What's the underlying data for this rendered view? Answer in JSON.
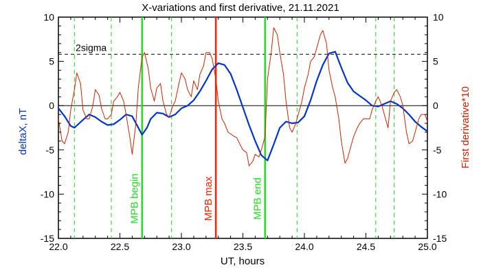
{
  "chart_data": {
    "type": "line",
    "title": "X-variations and first derivative, 21.11.2021",
    "xlabel": "UT, hours",
    "ylabel_left": "deltaX, nT",
    "ylabel_right": "First derivative*10",
    "xlim": [
      22.0,
      25.0
    ],
    "ylim": [
      -15,
      10
    ],
    "x_ticks": [
      "22.0",
      "22.5",
      "23.0",
      "23.5",
      "24.0",
      "24.5",
      "25.0"
    ],
    "y_ticks_left": [
      "-15",
      "-10",
      "-5",
      "0",
      "5",
      "10"
    ],
    "y_ticks_right": [
      "-15",
      "-10",
      "-5",
      "0",
      "5",
      "10"
    ],
    "sigma": {
      "label": "2sigma",
      "value": 5.8
    },
    "colors": {
      "deltaX": "#0033cc",
      "derivative": "#cc2200",
      "mpb": "#22dd22",
      "mpb_max": "#ff2200",
      "dashed_green": "#22cc22"
    },
    "series": [
      {
        "key": "deltaX",
        "color": "#0033cc",
        "x": [
          22.0,
          22.05,
          22.1,
          22.13,
          22.2,
          22.25,
          22.3,
          22.35,
          22.4,
          22.45,
          22.5,
          22.55,
          22.6,
          22.65,
          22.68,
          22.72,
          22.75,
          22.8,
          22.85,
          22.9,
          22.95,
          23.0,
          23.05,
          23.1,
          23.15,
          23.2,
          23.25,
          23.3,
          23.35,
          23.4,
          23.45,
          23.5,
          23.55,
          23.6,
          23.65,
          23.7,
          23.75,
          23.8,
          23.85,
          23.9,
          23.95,
          24.0,
          24.05,
          24.1,
          24.15,
          24.2,
          24.25,
          24.3,
          24.35,
          24.4,
          24.45,
          24.5,
          24.55,
          24.6,
          24.65,
          24.7,
          24.75,
          24.8,
          24.85,
          24.9,
          24.95,
          25.0
        ],
        "y": [
          -0.3,
          -1.2,
          -2.3,
          -2.5,
          -1.6,
          -1.0,
          -1.3,
          -1.8,
          -2.2,
          -2.1,
          -1.6,
          -1.0,
          -1.2,
          -2.5,
          -3.3,
          -2.5,
          -1.5,
          -0.8,
          -0.9,
          -1.3,
          -1.0,
          -0.3,
          0.0,
          0.6,
          1.6,
          2.8,
          4.1,
          4.8,
          4.6,
          3.6,
          1.8,
          -0.2,
          -2.2,
          -4.0,
          -5.6,
          -6.2,
          -4.4,
          -2.5,
          -1.8,
          -2.0,
          -1.9,
          -1.2,
          0.6,
          2.8,
          4.6,
          5.9,
          6.1,
          4.3,
          2.6,
          1.6,
          1.1,
          0.6,
          0.0,
          -0.1,
          0.2,
          0.5,
          0.2,
          -0.3,
          -1.0,
          -1.8,
          -2.4,
          -2.9
        ]
      },
      {
        "key": "derivative",
        "color": "#cc2200",
        "x": [
          22.0,
          22.03,
          22.05,
          22.08,
          22.1,
          22.13,
          22.15,
          22.18,
          22.2,
          22.23,
          22.25,
          22.28,
          22.3,
          22.33,
          22.35,
          22.38,
          22.4,
          22.43,
          22.45,
          22.48,
          22.5,
          22.53,
          22.55,
          22.58,
          22.6,
          22.63,
          22.65,
          22.68,
          22.7,
          22.73,
          22.75,
          22.78,
          22.8,
          22.83,
          22.85,
          22.88,
          22.9,
          22.93,
          22.95,
          22.98,
          23.0,
          23.03,
          23.05,
          23.08,
          23.1,
          23.13,
          23.15,
          23.18,
          23.2,
          23.23,
          23.25,
          23.28,
          23.3,
          23.33,
          23.35,
          23.38,
          23.4,
          23.43,
          23.45,
          23.48,
          23.5,
          23.53,
          23.55,
          23.58,
          23.6,
          23.63,
          23.65,
          23.68,
          23.7,
          23.73,
          23.75,
          23.78,
          23.8,
          23.83,
          23.85,
          23.88,
          23.9,
          23.93,
          23.95,
          23.98,
          24.0,
          24.03,
          24.05,
          24.08,
          24.1,
          24.13,
          24.15,
          24.18,
          24.2,
          24.23,
          24.25,
          24.28,
          24.3,
          24.33,
          24.35,
          24.38,
          24.4,
          24.43,
          24.45,
          24.48,
          24.5,
          24.53,
          24.55,
          24.58,
          24.6,
          24.63,
          24.65,
          24.68,
          24.7,
          24.73,
          24.75,
          24.78,
          24.8,
          24.83,
          24.85,
          24.88,
          24.9,
          24.93,
          24.95,
          24.98,
          25.0
        ],
        "y": [
          -1.5,
          -4.0,
          -4.3,
          -3.0,
          -0.5,
          1.8,
          3.7,
          2.5,
          -0.5,
          -1.5,
          -1.5,
          0.0,
          1.8,
          1.2,
          -0.3,
          -1.5,
          -1.5,
          -1.0,
          0.5,
          1.0,
          1.5,
          0.5,
          -1.0,
          -3.5,
          -5.5,
          -2.0,
          2.0,
          5.5,
          6.0,
          4.2,
          2.0,
          0.5,
          2.0,
          2.5,
          0.5,
          -1.0,
          -1.3,
          0.0,
          0.5,
          2.5,
          3.7,
          3.0,
          1.8,
          1.0,
          2.8,
          1.8,
          3.5,
          4.5,
          6.0,
          6.0,
          5.3,
          3.0,
          0.5,
          -1.5,
          -2.0,
          -3.0,
          -3.2,
          -3.5,
          -3.6,
          -4.5,
          -5.0,
          -5.3,
          -6.8,
          -6.3,
          -5.5,
          -5.8,
          -5.0,
          -3.5,
          3.0,
          6.0,
          8.8,
          8.0,
          6.0,
          3.5,
          0.5,
          -2.5,
          -3.0,
          -2.0,
          -1.0,
          0.5,
          2.0,
          3.5,
          5.0,
          5.5,
          6.5,
          8.0,
          8.5,
          7.0,
          4.0,
          2.0,
          1.0,
          -1.5,
          -4.0,
          -6.5,
          -6.0,
          -4.5,
          -3.5,
          -2.5,
          -2.0,
          -1.5,
          -1.5,
          -1.5,
          -0.5,
          0.5,
          1.0,
          0.0,
          -1.0,
          -2.5,
          0.5,
          1.5,
          1.8,
          1.0,
          0.0,
          -3.0,
          -4.3,
          -4.0,
          -3.0,
          -1.5,
          -1.0,
          -1.0,
          -1.8
        ]
      }
    ],
    "vlines": [
      {
        "x": 22.13,
        "style": "dashed",
        "color": "#22cc22"
      },
      {
        "x": 22.43,
        "style": "dashed",
        "color": "#22cc22"
      },
      {
        "x": 22.68,
        "style": "solid",
        "color": "#22dd22",
        "label": "MPB begin"
      },
      {
        "x": 22.92,
        "style": "dashed",
        "color": "#22cc22"
      },
      {
        "x": 23.28,
        "style": "solid",
        "color": "#ff2200",
        "label": "MPB max"
      },
      {
        "x": 23.68,
        "style": "solid",
        "color": "#22dd22",
        "label": "MPB end"
      },
      {
        "x": 23.94,
        "style": "dashed",
        "color": "#22cc22"
      },
      {
        "x": 24.58,
        "style": "dashed",
        "color": "#22cc22"
      },
      {
        "x": 24.73,
        "style": "dashed",
        "color": "#22cc22"
      }
    ]
  }
}
